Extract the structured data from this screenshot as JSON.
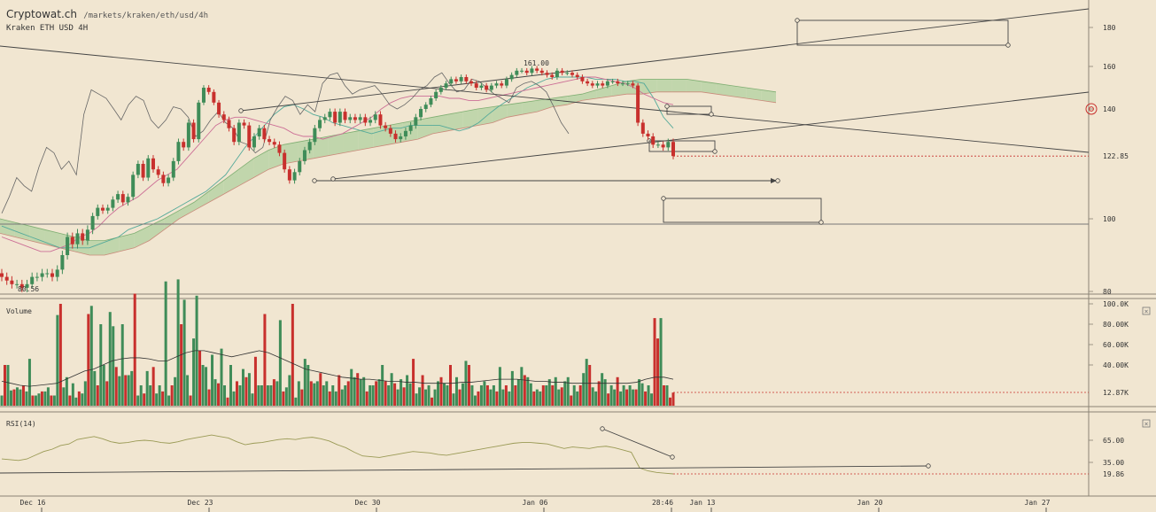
{
  "header": {
    "brand": "Cryptowat.ch",
    "path": "/markets/kraken/eth/usd/4h",
    "subtitle": "Kraken ETH USD 4H"
  },
  "colors": {
    "background": "#f1e6d1",
    "up": "#3f8c58",
    "down": "#c8302d",
    "cloud_bull": "#b9d2a6",
    "cloud_bear": "#dfb4a2",
    "line": "#555555",
    "kijun": "#cc6f96",
    "tenkan": "#55aa9a"
  },
  "chart_data": [
    {
      "type": "candlestick",
      "pane": "price",
      "x_axis": {
        "tick_labels": [
          "Dec 16",
          "Dec 23",
          "Dec 30",
          "Jan 06",
          "28:46",
          "Jan 13",
          "Jan 20",
          "Jan 27"
        ]
      },
      "y_axis": {
        "tick_labels": [
          "180",
          "160",
          "140",
          "100",
          "80"
        ],
        "ylim": [
          78,
          190
        ]
      },
      "last_price": "122.85",
      "high_label": "161.00",
      "low_label": "80.56",
      "series": [
        {
          "role": "close",
          "values": [
            84,
            83,
            82,
            82,
            81,
            82,
            84,
            84,
            85,
            85,
            84,
            86,
            90,
            95,
            93,
            96,
            94,
            97,
            101,
            104,
            103,
            104,
            107,
            109,
            106,
            108,
            116,
            120,
            115,
            122,
            118,
            116,
            113,
            115,
            121,
            128,
            126,
            135,
            129,
            143,
            150,
            148,
            143,
            138,
            136,
            133,
            128,
            135,
            134,
            126,
            130,
            133,
            129,
            128,
            127,
            124,
            118,
            114,
            117,
            121,
            125,
            128,
            133,
            136,
            137,
            139,
            135,
            139,
            136,
            137,
            136,
            137,
            135,
            136,
            138,
            134,
            133,
            131,
            129,
            130,
            132,
            134,
            137,
            140,
            142,
            145,
            148,
            150,
            152,
            154,
            153,
            155,
            153,
            152,
            150,
            151,
            149,
            151,
            152,
            151,
            154,
            156,
            158,
            158,
            157,
            159,
            158,
            157,
            156,
            155,
            158,
            157,
            157,
            156,
            155,
            153,
            152,
            151,
            152,
            151,
            153,
            153,
            152,
            152,
            152,
            151,
            135,
            131,
            130,
            127,
            127,
            126,
            128,
            122.85
          ]
        },
        {
          "role": "tenkan",
          "values": [
            98,
            97,
            96,
            95,
            94,
            93,
            92,
            92,
            92,
            92,
            93,
            94,
            95,
            97,
            98,
            99,
            100,
            102,
            104,
            106,
            108,
            110,
            113,
            116,
            121,
            126,
            130,
            134,
            138,
            141,
            142,
            140,
            138,
            137,
            135,
            134,
            133,
            132,
            131,
            132,
            133,
            133,
            134,
            134,
            134,
            134,
            133,
            132,
            133,
            135,
            138,
            141,
            144,
            147,
            150,
            152,
            154,
            155,
            155,
            155,
            155,
            154,
            154,
            154,
            153,
            153,
            152,
            145,
            137,
            133
          ]
        },
        {
          "role": "kijun",
          "values": [
            95,
            94,
            93,
            92,
            91,
            91,
            92,
            93,
            95,
            96,
            98,
            101,
            104,
            106,
            108,
            111,
            114,
            116,
            118,
            122,
            126,
            130,
            134,
            136,
            137,
            137,
            136,
            135,
            134,
            133,
            131,
            130,
            130,
            129,
            130,
            131,
            133,
            135,
            137,
            140,
            143,
            145,
            146,
            146,
            146,
            146,
            145,
            145,
            144,
            144,
            145,
            146,
            147,
            148,
            149,
            150,
            151,
            152,
            153,
            154,
            155,
            155,
            154,
            153,
            152,
            150,
            147,
            145,
            143,
            142
          ]
        }
      ],
      "ichimoku_cloud": {
        "span_a": [
          100,
          99,
          98,
          97,
          96,
          95,
          94,
          94,
          95,
          96,
          98,
          100,
          103,
          106,
          110,
          114,
          118,
          122,
          125,
          127,
          128,
          129,
          130,
          131,
          132,
          133,
          134,
          135,
          136,
          137,
          138,
          139,
          140,
          141,
          142,
          143,
          144,
          145,
          146,
          147,
          149,
          151,
          153,
          154,
          154,
          154,
          154,
          153,
          152,
          151,
          150,
          149,
          148
        ],
        "span_b": [
          96,
          95,
          94,
          93,
          92,
          91,
          90,
          90,
          91,
          92,
          94,
          97,
          100,
          103,
          106,
          109,
          112,
          115,
          118,
          120,
          121,
          122,
          123,
          124,
          125,
          126,
          127,
          128,
          129,
          131,
          132,
          133,
          134,
          135,
          137,
          138,
          139,
          141,
          142,
          144,
          145,
          146,
          147,
          147,
          148,
          148,
          148,
          148,
          147,
          146,
          145,
          144,
          143
        ]
      },
      "chikou": {
        "values": [
          102,
          108,
          115,
          112,
          110,
          119,
          126,
          124,
          118,
          121,
          116,
          138,
          149,
          147,
          145,
          140,
          136,
          142,
          146,
          144,
          136,
          133,
          136,
          141,
          140,
          137,
          130,
          132,
          136,
          139,
          135,
          133,
          128,
          127,
          124,
          126,
          136,
          141,
          146,
          144,
          138,
          142,
          139,
          152,
          156,
          157,
          151,
          147,
          149,
          150,
          151,
          147,
          142,
          140,
          142,
          145,
          149,
          151,
          155,
          157,
          152,
          148,
          149,
          154,
          153,
          150,
          147,
          145,
          143,
          150,
          152,
          153,
          151,
          148,
          141,
          135,
          131
        ]
      }
    },
    {
      "type": "bar",
      "pane": "volume",
      "title": "Volume",
      "y_axis": {
        "tick_labels": [
          "100.0K",
          "80.00K",
          "60.00K",
          "40.00K"
        ]
      },
      "last_value": "12.87K",
      "values": [
        10,
        40,
        40,
        15,
        16,
        18,
        16,
        20,
        14,
        46,
        10,
        10,
        12,
        14,
        14,
        18,
        10,
        10,
        89,
        100,
        18,
        28,
        10,
        22,
        8,
        14,
        12,
        24,
        90,
        98,
        34,
        20,
        80,
        40,
        24,
        92,
        78,
        38,
        29,
        80,
        30,
        30,
        34,
        110,
        10,
        20,
        12,
        34,
        20,
        38,
        12,
        20,
        14,
        122,
        10,
        20,
        28,
        124,
        80,
        104,
        30,
        10,
        66,
        108,
        54,
        40,
        38,
        16,
        50,
        26,
        22,
        56,
        20,
        8,
        40,
        14,
        24,
        20,
        36,
        28,
        32,
        12,
        48,
        20,
        20,
        90,
        20,
        20,
        26,
        24,
        84,
        14,
        18,
        30,
        100,
        8,
        24,
        16,
        46,
        40,
        24,
        22,
        24,
        32,
        20,
        24,
        14,
        20,
        14,
        30,
        16,
        20,
        24,
        36,
        28,
        32,
        26,
        28,
        14,
        20,
        20,
        24,
        26,
        40,
        24,
        20,
        32,
        22,
        16,
        26,
        18,
        30,
        22,
        46,
        12,
        18,
        30,
        16,
        20,
        8,
        16,
        24,
        28,
        22,
        20,
        40,
        12,
        28,
        16,
        22,
        44,
        40,
        20,
        10,
        14,
        20,
        24,
        20,
        16,
        20,
        14,
        38,
        16,
        20,
        14,
        34,
        20,
        26,
        38,
        30,
        28,
        22,
        14,
        16,
        14,
        20,
        20,
        26,
        20,
        28,
        16,
        18,
        24,
        28,
        10,
        20,
        14,
        20,
        32,
        46,
        40,
        18,
        14,
        24,
        32,
        26,
        12,
        20,
        16,
        28,
        14,
        20,
        16,
        20,
        16,
        16,
        26,
        22,
        14,
        20,
        12,
        86,
        66,
        86,
        20,
        20,
        8,
        12.87
      ],
      "series": [
        {
          "role": "moving_average",
          "values": [
            24,
            22,
            20,
            19,
            20,
            21,
            22,
            26,
            30,
            34,
            36,
            40,
            44,
            46,
            47,
            47,
            46,
            44,
            44,
            48,
            52,
            54,
            54,
            52,
            50,
            48,
            50,
            52,
            54,
            52,
            48,
            44,
            40,
            36,
            34,
            32,
            30,
            28,
            27,
            26,
            26,
            25,
            24,
            24,
            23,
            23,
            22,
            22,
            22,
            22,
            23,
            23,
            24,
            25,
            26,
            26,
            26,
            25,
            24,
            24,
            23,
            23,
            22,
            22,
            22,
            22,
            22,
            22,
            22,
            23,
            26,
            28,
            28,
            26
          ]
        }
      ]
    },
    {
      "type": "line",
      "pane": "rsi",
      "title": "RSI(14)",
      "y_axis": {
        "tick_labels": [
          "65.00",
          "35.00"
        ]
      },
      "last_value": "19.86",
      "values": [
        40,
        39,
        38,
        40,
        45,
        50,
        53,
        58,
        60,
        66,
        68,
        70,
        67,
        63,
        61,
        62,
        64,
        65,
        64,
        62,
        61,
        63,
        66,
        68,
        70,
        72,
        70,
        68,
        63,
        59,
        61,
        62,
        64,
        66,
        67,
        66,
        68,
        69,
        67,
        64,
        59,
        55,
        49,
        44,
        43,
        42,
        44,
        46,
        48,
        50,
        49,
        48,
        46,
        45,
        47,
        49,
        51,
        53,
        55,
        57,
        59,
        61,
        62,
        62,
        61,
        60,
        57,
        54,
        56,
        55,
        54,
        56,
        57,
        55,
        52,
        49,
        28,
        24,
        22,
        21,
        20
      ]
    }
  ]
}
